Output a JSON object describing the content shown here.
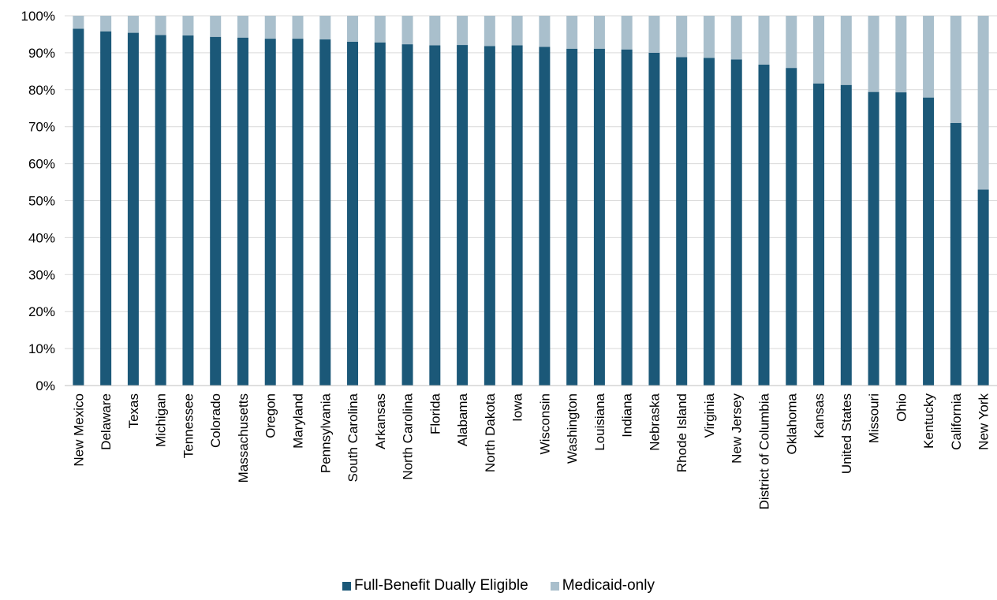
{
  "colors": {
    "full": "#1b5878",
    "medicaid": "#a9bfcc",
    "grid": "#d9d9d9"
  },
  "legend": {
    "full_label": "Full-Benefit Dually Eligible",
    "medicaid_label": "Medicaid-only"
  },
  "chart_data": {
    "type": "bar",
    "stacked": true,
    "categories": [
      "New Mexico",
      "Delaware",
      "Texas",
      "Michigan",
      "Tennessee",
      "Colorado",
      "Massachusetts",
      "Oregon",
      "Maryland",
      "Pennsylvania",
      "South Carolina",
      "Arkansas",
      "North Carolina",
      "Florida",
      "Alabama",
      "North Dakota",
      "Iowa",
      "Wisconsin",
      "Washington",
      "Louisiana",
      "Indiana",
      "Nebraska",
      "Rhode Island",
      "Virginia",
      "New Jersey",
      "District of Columbia",
      "Oklahoma",
      "Kansas",
      "United States",
      "Missouri",
      "Ohio",
      "Kentucky",
      "California",
      "New York"
    ],
    "series": [
      {
        "name": "Full-Benefit Dually Eligible",
        "values": [
          96.5,
          95.8,
          95.4,
          94.8,
          94.7,
          94.3,
          94.1,
          93.8,
          93.8,
          93.6,
          93.0,
          92.8,
          92.3,
          92.0,
          92.1,
          91.8,
          92.0,
          91.6,
          91.1,
          91.1,
          90.9,
          90.0,
          88.8,
          88.6,
          88.2,
          86.8,
          85.9,
          81.7,
          81.3,
          79.4,
          79.3,
          77.9,
          71.0,
          53.0
        ]
      },
      {
        "name": "Medicaid-only",
        "values": [
          3.5,
          4.2,
          4.6,
          5.2,
          5.3,
          5.7,
          5.9,
          6.2,
          6.2,
          6.4,
          7.0,
          7.2,
          7.7,
          8.0,
          7.9,
          8.2,
          8.0,
          8.4,
          8.9,
          8.9,
          9.1,
          10.0,
          11.2,
          11.4,
          11.8,
          13.2,
          14.1,
          18.3,
          18.7,
          20.6,
          20.7,
          22.1,
          29.0,
          47.0
        ]
      }
    ],
    "y_ticks": [
      "0%",
      "10%",
      "20%",
      "30%",
      "40%",
      "50%",
      "60%",
      "70%",
      "80%",
      "90%",
      "100%"
    ],
    "ylim": [
      0,
      100
    ],
    "grid": true,
    "legend_position": "bottom"
  }
}
